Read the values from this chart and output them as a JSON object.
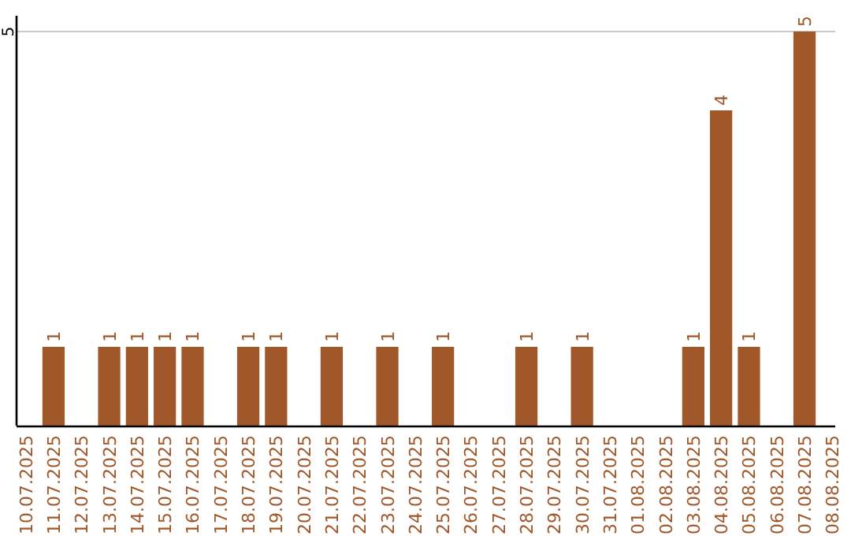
{
  "chart_data": {
    "type": "bar",
    "categories": [
      "10.07.2025",
      "11.07.2025",
      "12.07.2025",
      "13.07.2025",
      "14.07.2025",
      "15.07.2025",
      "16.07.2025",
      "17.07.2025",
      "18.07.2025",
      "19.07.2025",
      "20.07.2025",
      "21.07.2025",
      "22.07.2025",
      "23.07.2025",
      "24.07.2025",
      "25.07.2025",
      "26.07.2025",
      "27.07.2025",
      "28.07.2025",
      "29.07.2025",
      "30.07.2025",
      "31.07.2025",
      "01.08.2025",
      "02.08.2025",
      "03.08.2025",
      "04.08.2025",
      "05.08.2025",
      "06.08.2025",
      "07.08.2025",
      "08.08.2025"
    ],
    "values": [
      0,
      1,
      0,
      1,
      1,
      1,
      1,
      0,
      1,
      1,
      0,
      1,
      0,
      1,
      0,
      1,
      0,
      0,
      1,
      0,
      1,
      0,
      0,
      0,
      1,
      4,
      1,
      0,
      5,
      0
    ],
    "value_labels": [
      null,
      "1",
      null,
      "1",
      "1",
      "1",
      "1",
      null,
      "1",
      "1",
      null,
      "1",
      null,
      "1",
      null,
      "1",
      null,
      null,
      "1",
      null,
      "1",
      null,
      null,
      null,
      "1",
      "4",
      "1",
      null,
      "5",
      null
    ],
    "color": "#a0572a",
    "ylim": [
      0,
      5.2
    ],
    "yticks": [
      5
    ],
    "grid": "y"
  }
}
